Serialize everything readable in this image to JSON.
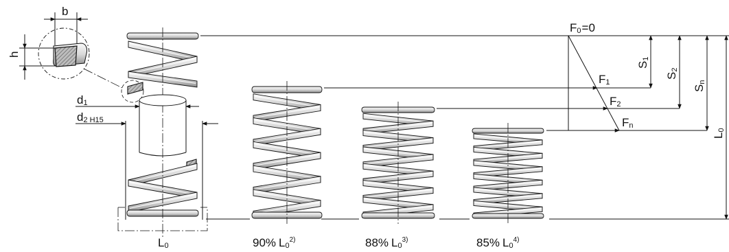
{
  "detail": {
    "width_label": "b",
    "height_label": "h"
  },
  "diameters": {
    "d1": {
      "main": "d",
      "sub": "1"
    },
    "d2": {
      "main": "d",
      "sub": "2",
      "tol": "H15"
    }
  },
  "springs": [
    {
      "main": "L",
      "sub": "0",
      "pct": "",
      "sup": ""
    },
    {
      "main": "L",
      "sub": "0",
      "pct": "90%",
      "sup": "2)"
    },
    {
      "main": "L",
      "sub": "0",
      "pct": "88%",
      "sup": "3)"
    },
    {
      "main": "L",
      "sub": "0",
      "pct": "85%",
      "sup": "4)"
    }
  ],
  "forces": {
    "f0": {
      "main": "F",
      "sub": "0",
      "eq": "=0"
    },
    "f1": {
      "main": "F",
      "sub": "1"
    },
    "f2": {
      "main": "F",
      "sub": "2"
    },
    "fn": {
      "main": "F",
      "sub": "n"
    }
  },
  "strokes": {
    "s1": {
      "main": "S",
      "sub": "1"
    },
    "s2": {
      "main": "S",
      "sub": "2"
    },
    "sn": {
      "main": "S",
      "sub": "n"
    },
    "l0": {
      "main": "L",
      "sub": "0"
    }
  },
  "colors": {
    "line": "#111111",
    "coil_light": "#e4e4e4",
    "coil_dark": "#8e8e8e",
    "hatch": "#555555"
  }
}
